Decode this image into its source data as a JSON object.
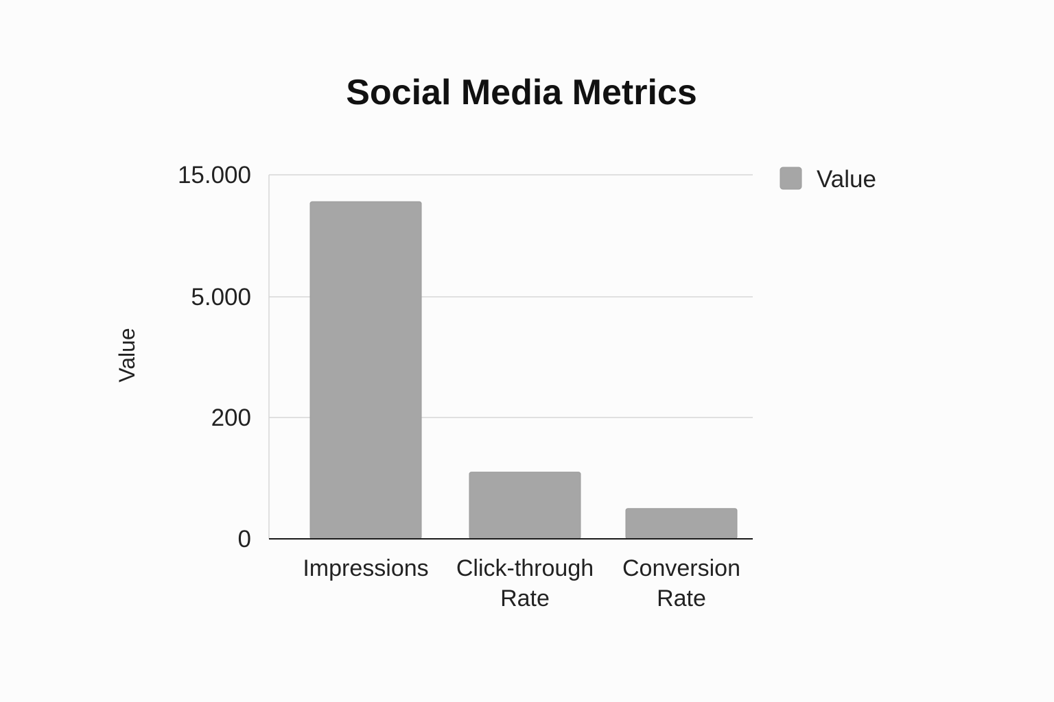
{
  "chart_data": {
    "type": "bar",
    "title": "Social Media Metrics",
    "xlabel": "",
    "ylabel": "Value",
    "y_scale": "non-uniform",
    "y_ticks": [
      {
        "label": "0",
        "value": 0
      },
      {
        "label": "200",
        "value": 200
      },
      {
        "label": "5.000",
        "value": 5000
      },
      {
        "label": "15.000",
        "value": 15000
      }
    ],
    "ylim": [
      0,
      15000
    ],
    "grid": true,
    "legend_position": "top-right",
    "categories": [
      "Impressions",
      "Click-through Rate",
      "Conversion Rate"
    ],
    "category_label_lines": [
      [
        "Impressions"
      ],
      [
        "Click-through",
        "Rate"
      ],
      [
        "Conversion",
        "Rate"
      ]
    ],
    "series": [
      {
        "name": "Value",
        "values": [
          12800,
          110,
          50
        ],
        "color": "#a6a6a6"
      }
    ]
  }
}
